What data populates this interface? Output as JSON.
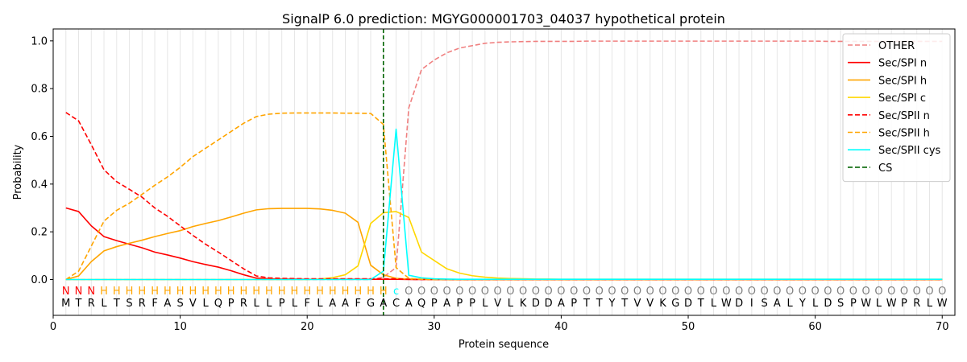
{
  "chart_data": {
    "type": "line",
    "title": "SignalP 6.0 prediction: MGYG000001703_04037 hypothetical protein",
    "xlabel": "Protein sequence",
    "ylabel": "Probability",
    "xlim": [
      0,
      71
    ],
    "ylim": [
      -0.15,
      1.05
    ],
    "xticks": [
      0,
      10,
      20,
      30,
      40,
      50,
      60,
      70
    ],
    "yticks": [
      0.0,
      0.2,
      0.4,
      0.6,
      0.8,
      1.0
    ],
    "xtick_labels": [
      "0",
      "10",
      "20",
      "30",
      "40",
      "50",
      "60",
      "70"
    ],
    "ytick_labels": [
      "0.0",
      "0.2",
      "0.4",
      "0.6",
      "0.8",
      "1.0"
    ],
    "legend_position": "top-right",
    "vertical_grid": true,
    "sequence": [
      "M",
      "T",
      "R",
      "L",
      "T",
      "S",
      "R",
      "F",
      "A",
      "S",
      "V",
      "L",
      "Q",
      "P",
      "R",
      "L",
      "L",
      "P",
      "L",
      "F",
      "L",
      "A",
      "A",
      "F",
      "G",
      "A",
      "C",
      "A",
      "Q",
      "P",
      "A",
      "P",
      "P",
      "L",
      "V",
      "L",
      "K",
      "D",
      "D",
      "A",
      "P",
      "T",
      "T",
      "Y",
      "T",
      "V",
      "V",
      "K",
      "G",
      "D",
      "T",
      "L",
      "W",
      "D",
      "I",
      "S",
      "A",
      "L",
      "Y",
      "L",
      "D",
      "S",
      "P",
      "W",
      "L",
      "W",
      "P",
      "R",
      "L",
      "W"
    ],
    "labels": [
      "N",
      "N",
      "N",
      "H",
      "H",
      "H",
      "H",
      "H",
      "H",
      "H",
      "H",
      "H",
      "H",
      "H",
      "H",
      "H",
      "H",
      "H",
      "H",
      "H",
      "H",
      "H",
      "H",
      "H",
      "H",
      "H",
      "c",
      "O",
      "O",
      "O",
      "O",
      "O",
      "O",
      "O",
      "O",
      "O",
      "O",
      "O",
      "O",
      "O",
      "O",
      "O",
      "O",
      "O",
      "O",
      "O",
      "O",
      "O",
      "O",
      "O",
      "O",
      "O",
      "O",
      "O",
      "O",
      "O",
      "O",
      "O",
      "O",
      "O",
      "O",
      "O",
      "O",
      "O",
      "O",
      "O",
      "O",
      "O",
      "O",
      "O"
    ],
    "label_colors": {
      "N": "#ff0000",
      "H": "#ffa500",
      "c": "#00ffff",
      "O": "#808080"
    },
    "cleavage_site": 26,
    "series": [
      {
        "name": "OTHER",
        "color": "#f08080",
        "dash": true,
        "values": [
          0,
          0,
          0,
          0,
          0,
          0,
          0,
          0,
          0,
          0,
          0,
          0,
          0,
          0,
          0,
          0,
          0,
          0,
          0,
          0,
          0,
          0,
          0,
          0,
          0,
          0.01,
          0.05,
          0.72,
          0.88,
          0.92,
          0.95,
          0.97,
          0.98,
          0.99,
          0.994,
          0.996,
          0.997,
          0.998,
          0.998,
          0.998,
          0.998,
          0.999,
          0.999,
          0.999,
          0.999,
          0.999,
          0.999,
          0.999,
          0.999,
          0.999,
          0.999,
          0.999,
          0.999,
          0.999,
          0.999,
          0.999,
          0.999,
          0.999,
          0.999,
          0.999,
          0.998,
          0.998,
          0.998,
          0.998,
          0.998,
          0.998,
          0.998,
          0.998,
          0.998,
          0.998
        ]
      },
      {
        "name": "Sec/SPI n",
        "color": "#ff0000",
        "dash": false,
        "values": [
          0.3,
          0.285,
          0.225,
          0.18,
          0.163,
          0.148,
          0.133,
          0.115,
          0.103,
          0.09,
          0.075,
          0.063,
          0.052,
          0.037,
          0.02,
          0.006,
          0.003,
          0.002,
          0.002,
          0.001,
          0.001,
          0.001,
          0.001,
          0.001,
          0.001,
          0.001,
          0.001,
          0,
          0,
          0,
          0,
          0,
          0,
          0,
          0,
          0,
          0,
          0,
          0,
          0,
          0,
          0,
          0,
          0,
          0,
          0,
          0,
          0,
          0,
          0,
          0,
          0,
          0,
          0,
          0,
          0,
          0,
          0,
          0,
          0,
          0,
          0,
          0,
          0,
          0,
          0,
          0,
          0,
          0,
          0
        ]
      },
      {
        "name": "Sec/SPI h",
        "color": "#ffa500",
        "dash": false,
        "values": [
          0,
          0.015,
          0.075,
          0.12,
          0.138,
          0.152,
          0.165,
          0.18,
          0.193,
          0.205,
          0.222,
          0.235,
          0.247,
          0.262,
          0.278,
          0.292,
          0.297,
          0.298,
          0.298,
          0.298,
          0.296,
          0.29,
          0.278,
          0.24,
          0.06,
          0.02,
          0.005,
          0.002,
          0.001,
          0,
          0,
          0,
          0,
          0,
          0,
          0,
          0,
          0,
          0,
          0,
          0,
          0,
          0,
          0,
          0,
          0,
          0,
          0,
          0,
          0,
          0,
          0,
          0,
          0,
          0,
          0,
          0,
          0,
          0,
          0,
          0,
          0,
          0,
          0,
          0,
          0,
          0,
          0,
          0,
          0
        ]
      },
      {
        "name": "Sec/SPI c",
        "color": "#ffd700",
        "dash": false,
        "values": [
          0,
          0,
          0,
          0,
          0,
          0,
          0,
          0,
          0,
          0,
          0,
          0,
          0,
          0,
          0,
          0,
          0,
          0,
          0,
          0,
          0.002,
          0.008,
          0.02,
          0.057,
          0.235,
          0.28,
          0.285,
          0.26,
          0.115,
          0.08,
          0.045,
          0.027,
          0.016,
          0.01,
          0.006,
          0.004,
          0.003,
          0.002,
          0.002,
          0.001,
          0.001,
          0.001,
          0.001,
          0.001,
          0.001,
          0.001,
          0.001,
          0.001,
          0.001,
          0.001,
          0.001,
          0.001,
          0.001,
          0.001,
          0.001,
          0.001,
          0.001,
          0.001,
          0.001,
          0.001,
          0.001,
          0.001,
          0.001,
          0.001,
          0.001,
          0.001,
          0.001,
          0.001,
          0.001,
          0.001
        ]
      },
      {
        "name": "Sec/SPII n",
        "color": "#ff0000",
        "dash": true,
        "values": [
          0.7,
          0.665,
          0.565,
          0.46,
          0.41,
          0.378,
          0.345,
          0.3,
          0.265,
          0.225,
          0.185,
          0.148,
          0.115,
          0.08,
          0.045,
          0.015,
          0.007,
          0.005,
          0.004,
          0.003,
          0.003,
          0.003,
          0.003,
          0.003,
          0.003,
          0.003,
          0.003,
          0.001,
          0,
          0,
          0,
          0,
          0,
          0,
          0,
          0,
          0,
          0,
          0,
          0,
          0,
          0,
          0,
          0,
          0,
          0,
          0,
          0,
          0,
          0,
          0,
          0,
          0,
          0,
          0,
          0,
          0,
          0,
          0,
          0,
          0,
          0,
          0,
          0,
          0,
          0,
          0,
          0,
          0,
          0
        ]
      },
      {
        "name": "Sec/SPII h",
        "color": "#ffa500",
        "dash": true,
        "values": [
          0,
          0.035,
          0.14,
          0.245,
          0.29,
          0.32,
          0.357,
          0.395,
          0.43,
          0.47,
          0.515,
          0.55,
          0.585,
          0.62,
          0.655,
          0.683,
          0.693,
          0.697,
          0.698,
          0.698,
          0.698,
          0.698,
          0.697,
          0.697,
          0.696,
          0.65,
          0.05,
          0.005,
          0.001,
          0,
          0,
          0,
          0,
          0,
          0,
          0,
          0,
          0,
          0,
          0,
          0,
          0,
          0,
          0,
          0,
          0,
          0,
          0,
          0,
          0,
          0,
          0,
          0,
          0,
          0,
          0,
          0,
          0,
          0,
          0,
          0,
          0,
          0,
          0,
          0,
          0,
          0,
          0,
          0,
          0
        ]
      },
      {
        "name": "Sec/SPII cys",
        "color": "#00ffff",
        "dash": false,
        "values": [
          0,
          0,
          0,
          0,
          0,
          0,
          0,
          0,
          0,
          0,
          0,
          0,
          0,
          0,
          0,
          0,
          0,
          0,
          0,
          0,
          0,
          0,
          0,
          0,
          0,
          0.035,
          0.63,
          0.018,
          0.007,
          0.003,
          0.002,
          0.001,
          0.001,
          0.001,
          0.001,
          0.001,
          0.001,
          0.001,
          0.001,
          0.001,
          0.001,
          0.001,
          0.001,
          0.001,
          0.001,
          0.001,
          0.001,
          0.001,
          0.001,
          0.001,
          0.001,
          0.001,
          0.001,
          0.001,
          0.001,
          0.001,
          0.001,
          0.001,
          0.001,
          0.001,
          0.001,
          0.001,
          0.001,
          0.001,
          0.001,
          0.001,
          0.001,
          0.001,
          0.001,
          0.001
        ]
      }
    ],
    "cs_legend": {
      "name": "CS",
      "color": "#006400",
      "dash": true
    }
  }
}
